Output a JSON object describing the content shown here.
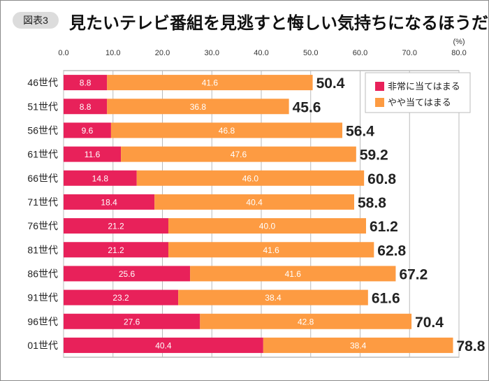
{
  "badge": "図表3",
  "title": "見たいテレビ番組を見逃すと悔しい気持ちになるほうだ",
  "chart_data": {
    "type": "bar",
    "orientation": "horizontal",
    "stacked": true,
    "unit_label": "(%)",
    "xlim": [
      0,
      80
    ],
    "ticks": [
      "0.0",
      "10.0",
      "20.0",
      "30.0",
      "40.0",
      "50.0",
      "60.0",
      "70.0",
      "80.0"
    ],
    "grid": true,
    "legend_position": "top-right",
    "categories": [
      "46世代",
      "51世代",
      "56世代",
      "61世代",
      "66世代",
      "71世代",
      "76世代",
      "81世代",
      "86世代",
      "91世代",
      "96世代",
      "01世代"
    ],
    "series": [
      {
        "name": "非常に当てはまる",
        "color": "#e8215a",
        "values": [
          8.8,
          8.8,
          9.6,
          11.6,
          14.8,
          18.4,
          21.2,
          21.2,
          25.6,
          23.2,
          27.6,
          40.4
        ]
      },
      {
        "name": "やや当てはまる",
        "color": "#fd9b42",
        "values": [
          41.6,
          36.8,
          46.8,
          47.6,
          46.0,
          40.4,
          40.0,
          41.6,
          41.6,
          38.4,
          42.8,
          38.4
        ]
      }
    ],
    "totals": [
      50.4,
      45.6,
      56.4,
      59.2,
      60.8,
      58.8,
      61.2,
      62.8,
      67.2,
      61.6,
      70.4,
      78.8
    ]
  }
}
